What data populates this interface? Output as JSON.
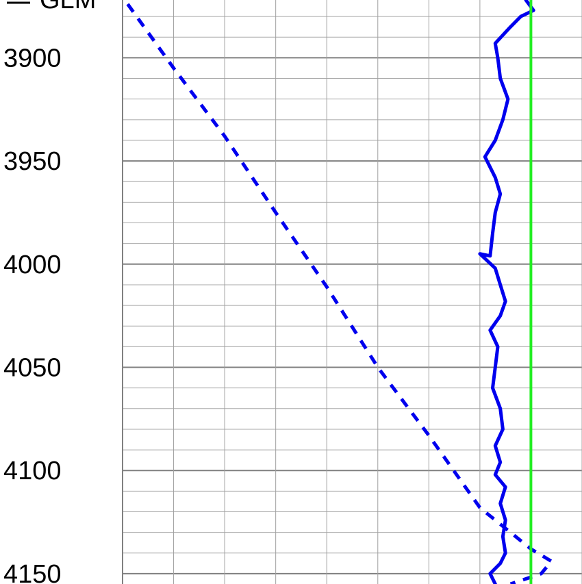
{
  "chart_data": {
    "type": "line",
    "title": "",
    "xlabel": "",
    "ylabel": "",
    "y_axis": {
      "inverted": true,
      "ylim": [
        3872,
        4155
      ],
      "ticks": [
        3900,
        3950,
        4000,
        4050,
        4100,
        4150
      ],
      "minor_step": 10
    },
    "x_axis": {
      "xlim": [
        0,
        9
      ],
      "tick_labels_shown": false
    },
    "grid": true,
    "legend": {
      "visible_entries": [
        "GLM"
      ],
      "placement": "top-left"
    },
    "series": [
      {
        "name": "",
        "style": "dashed",
        "color": "#0000ee",
        "points": [
          [
            0.1,
            3874
          ],
          [
            1.0,
            3905
          ],
          [
            2.0,
            3938
          ],
          [
            3.0,
            3975
          ],
          [
            4.0,
            4011
          ],
          [
            5.0,
            4050
          ],
          [
            6.0,
            4083
          ],
          [
            7.0,
            4118
          ],
          [
            8.0,
            4138
          ],
          [
            8.4,
            4144
          ],
          [
            8.2,
            4150
          ],
          [
            7.6,
            4155
          ]
        ]
      },
      {
        "name": "",
        "style": "solid",
        "color": "#0000ee",
        "points": [
          [
            7.9,
            3872
          ],
          [
            8.05,
            3877
          ],
          [
            7.8,
            3880
          ],
          [
            7.6,
            3885
          ],
          [
            7.3,
            3893
          ],
          [
            7.35,
            3900
          ],
          [
            7.4,
            3910
          ],
          [
            7.55,
            3920
          ],
          [
            7.45,
            3930
          ],
          [
            7.3,
            3940
          ],
          [
            7.1,
            3948
          ],
          [
            7.3,
            3958
          ],
          [
            7.4,
            3966
          ],
          [
            7.3,
            3975
          ],
          [
            7.25,
            3985
          ],
          [
            7.2,
            3996
          ],
          [
            7.0,
            3995
          ],
          [
            7.3,
            4002
          ],
          [
            7.4,
            4010
          ],
          [
            7.5,
            4018
          ],
          [
            7.4,
            4025
          ],
          [
            7.2,
            4032
          ],
          [
            7.35,
            4040
          ],
          [
            7.3,
            4050
          ],
          [
            7.25,
            4060
          ],
          [
            7.4,
            4070
          ],
          [
            7.45,
            4080
          ],
          [
            7.3,
            4088
          ],
          [
            7.4,
            4096
          ],
          [
            7.3,
            4102
          ],
          [
            7.5,
            4108
          ],
          [
            7.4,
            4116
          ],
          [
            7.5,
            4124
          ],
          [
            7.45,
            4132
          ],
          [
            7.5,
            4140
          ],
          [
            7.4,
            4145
          ],
          [
            7.2,
            4150
          ],
          [
            7.3,
            4155
          ]
        ]
      },
      {
        "name": "",
        "style": "solid",
        "color": "#22ee22",
        "points": [
          [
            8.0,
            3872
          ],
          [
            8.0,
            4155
          ]
        ]
      }
    ]
  }
}
